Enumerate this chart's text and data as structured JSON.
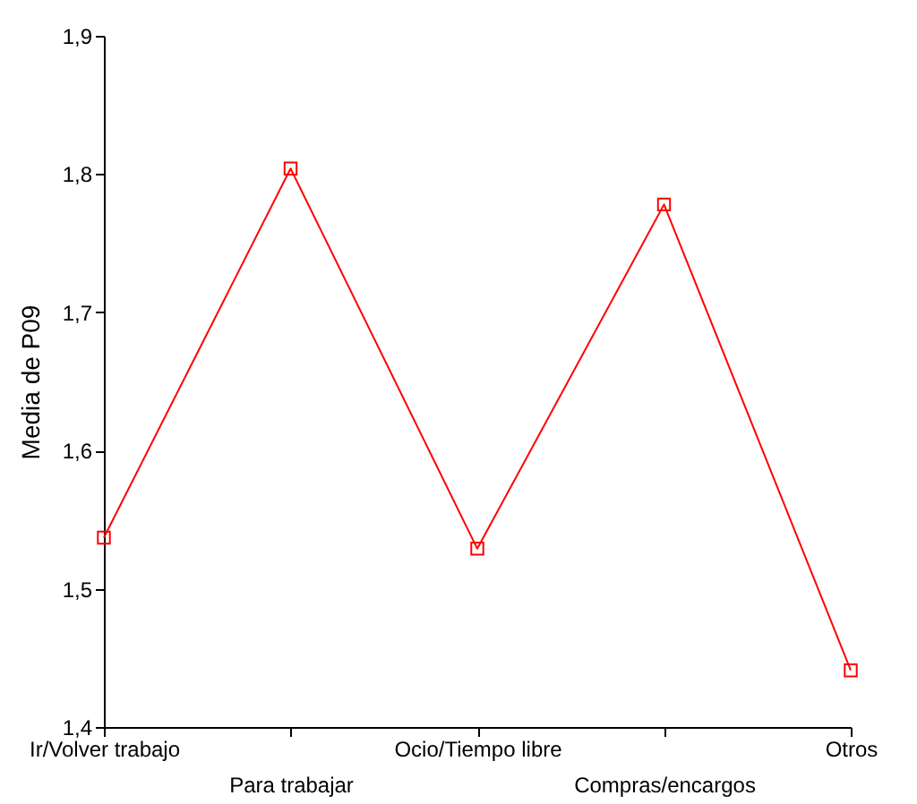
{
  "chart_data": {
    "type": "line",
    "ylabel": "Media de P09",
    "categories": [
      "Ir/Volver trabajo",
      "Para trabajar",
      "Ocio/Tiempo libre",
      "Compras/encargos",
      "Otros"
    ],
    "series": [
      {
        "color": "#ff0000",
        "values": [
          1.537,
          1.804,
          1.529,
          1.778,
          1.441
        ]
      }
    ],
    "ylim": [
      1.4,
      1.9
    ],
    "yticks": [
      {
        "value": 1.4,
        "label": "1,4"
      },
      {
        "value": 1.5,
        "label": "1,5"
      },
      {
        "value": 1.6,
        "label": "1,6"
      },
      {
        "value": 1.7,
        "label": "1,7"
      },
      {
        "value": 1.8,
        "label": "1,8"
      },
      {
        "value": 1.9,
        "label": "1,9"
      }
    ],
    "marker": "square",
    "line_style": "solid"
  }
}
